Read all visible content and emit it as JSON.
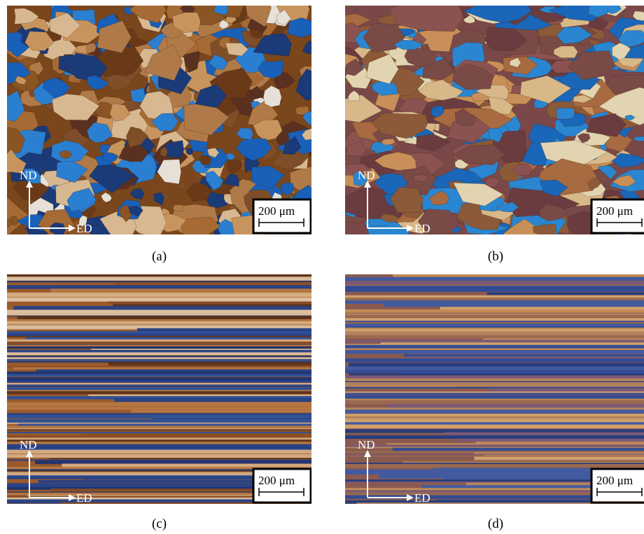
{
  "panels": [
    {
      "label": "(a)",
      "axis_vertical": "ND",
      "axis_horizontal": "ED",
      "scale_bar": "200 μm"
    },
    {
      "label": "(b)",
      "axis_vertical": "ND",
      "axis_horizontal": "ED",
      "scale_bar": "200 μm"
    },
    {
      "label": "(c)",
      "axis_vertical": "ND",
      "axis_horizontal": "ED",
      "scale_bar": "200 μm"
    },
    {
      "label": "(d)",
      "axis_vertical": "ND",
      "axis_horizontal": "ED",
      "scale_bar": "200 μm"
    }
  ]
}
